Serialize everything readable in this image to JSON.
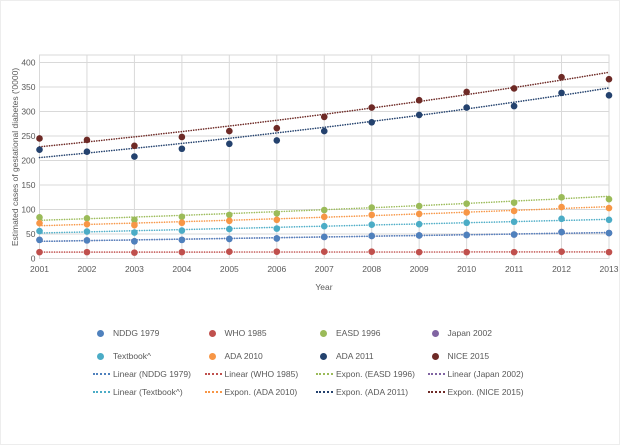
{
  "chart_data": {
    "type": "scatter",
    "title": "",
    "xlabel": "Year",
    "ylabel": "Estimated cases of gestational diabetes ('0000)",
    "x": [
      2001,
      2002,
      2003,
      2004,
      2005,
      2006,
      2007,
      2008,
      2009,
      2010,
      2011,
      2012,
      2013
    ],
    "ylim": [
      0,
      400
    ],
    "ytick_step": 50,
    "grid": true,
    "legend_position": "bottom",
    "series": [
      {
        "name": "Japan 2002",
        "color": "#8064A2",
        "values": [
          38,
          37,
          35,
          38,
          40,
          41,
          44,
          46,
          47,
          48,
          49,
          54,
          52
        ]
      },
      {
        "name": "NDDG 1979",
        "color": "#4F81BD",
        "values": [
          38,
          37,
          35,
          38,
          40,
          41,
          44,
          46,
          47,
          48,
          49,
          54,
          52
        ]
      },
      {
        "name": "WHO 1985",
        "color": "#C0504D",
        "values": [
          13,
          13,
          12,
          13,
          14,
          14,
          14,
          14,
          13,
          13,
          13,
          14,
          13
        ]
      },
      {
        "name": "EASD 1996",
        "color": "#9BBB59",
        "values": [
          84,
          82,
          79,
          85,
          89,
          92,
          99,
          104,
          107,
          112,
          114,
          125,
          121
        ]
      },
      {
        "name": "Textbook^",
        "color": "#4BACC6",
        "values": [
          56,
          55,
          53,
          57,
          60,
          61,
          66,
          69,
          70,
          73,
          75,
          81,
          79
        ]
      },
      {
        "name": "ADA 2010",
        "color": "#F79646",
        "values": [
          72,
          70,
          68,
          73,
          77,
          79,
          85,
          89,
          91,
          94,
          97,
          105,
          103
        ]
      },
      {
        "name": "ADA 2011",
        "color": "#24426E",
        "values": [
          222,
          218,
          208,
          224,
          234,
          241,
          260,
          278,
          293,
          308,
          311,
          338,
          333
        ]
      },
      {
        "name": "NICE 2015",
        "color": "#6E2A26",
        "values": [
          245,
          242,
          230,
          248,
          260,
          266,
          289,
          308,
          323,
          340,
          347,
          370,
          366
        ]
      }
    ],
    "trendlines": [
      {
        "label": "Linear (Japan 2002)",
        "kind": "linear",
        "color": "#8064A2",
        "start": 35,
        "end": 53
      },
      {
        "label": "Linear (NDDG 1979)",
        "kind": "linear",
        "color": "#4F81BD",
        "start": 35,
        "end": 53
      },
      {
        "label": "Linear (WHO 1985)",
        "kind": "linear",
        "color": "#C0504D",
        "start": 13,
        "end": 13.5
      },
      {
        "label": "Expon. (EASD 1996)",
        "kind": "expon",
        "color": "#9BBB59",
        "start": 78,
        "end": 127
      },
      {
        "label": "Linear (Textbook^)",
        "kind": "linear",
        "color": "#4BACC6",
        "start": 52,
        "end": 80
      },
      {
        "label": "Expon. (ADA 2010)",
        "kind": "expon",
        "color": "#F79646",
        "start": 67,
        "end": 106
      },
      {
        "label": "Expon. (ADA 2011)",
        "kind": "expon",
        "color": "#24426E",
        "start": 206,
        "end": 348
      },
      {
        "label": "Expon. (NICE 2015)",
        "kind": "expon",
        "color": "#6E2A26",
        "start": 228,
        "end": 380
      }
    ],
    "legend_rows": [
      [
        {
          "label": "NDDG 1979",
          "color": "#4F81BD",
          "marker": "dot"
        },
        {
          "label": "WHO 1985",
          "color": "#C0504D",
          "marker": "dot"
        },
        {
          "label": "EASD 1996",
          "color": "#9BBB59",
          "marker": "dot"
        },
        {
          "label": "Japan 2002",
          "color": "#8064A2",
          "marker": "dot"
        }
      ],
      [
        {
          "label": "Textbook^",
          "color": "#4BACC6",
          "marker": "dot"
        },
        {
          "label": "ADA 2010",
          "color": "#F79646",
          "marker": "dot"
        },
        {
          "label": "ADA 2011",
          "color": "#24426E",
          "marker": "dot"
        },
        {
          "label": "NICE 2015",
          "color": "#6E2A26",
          "marker": "dot"
        }
      ],
      [
        {
          "label": "Linear (NDDG 1979)",
          "color": "#4F81BD",
          "marker": "line"
        },
        {
          "label": "Linear (WHO 1985)",
          "color": "#C0504D",
          "marker": "line"
        },
        {
          "label": "Expon. (EASD 1996)",
          "color": "#9BBB59",
          "marker": "line"
        },
        {
          "label": "Linear (Japan 2002)",
          "color": "#8064A2",
          "marker": "line"
        }
      ],
      [
        {
          "label": "Linear (Textbook^)",
          "color": "#4BACC6",
          "marker": "line"
        },
        {
          "label": "Expon. (ADA 2010)",
          "color": "#F79646",
          "marker": "line"
        },
        {
          "label": "Expon. (ADA 2011)",
          "color": "#24426E",
          "marker": "line"
        },
        {
          "label": "Expon. (NICE 2015)",
          "color": "#6E2A26",
          "marker": "line"
        }
      ]
    ],
    "style_colors": {
      "gridline": "#d9d9d9",
      "axis_line": "#bfbfbf",
      "text": "#595959"
    }
  }
}
